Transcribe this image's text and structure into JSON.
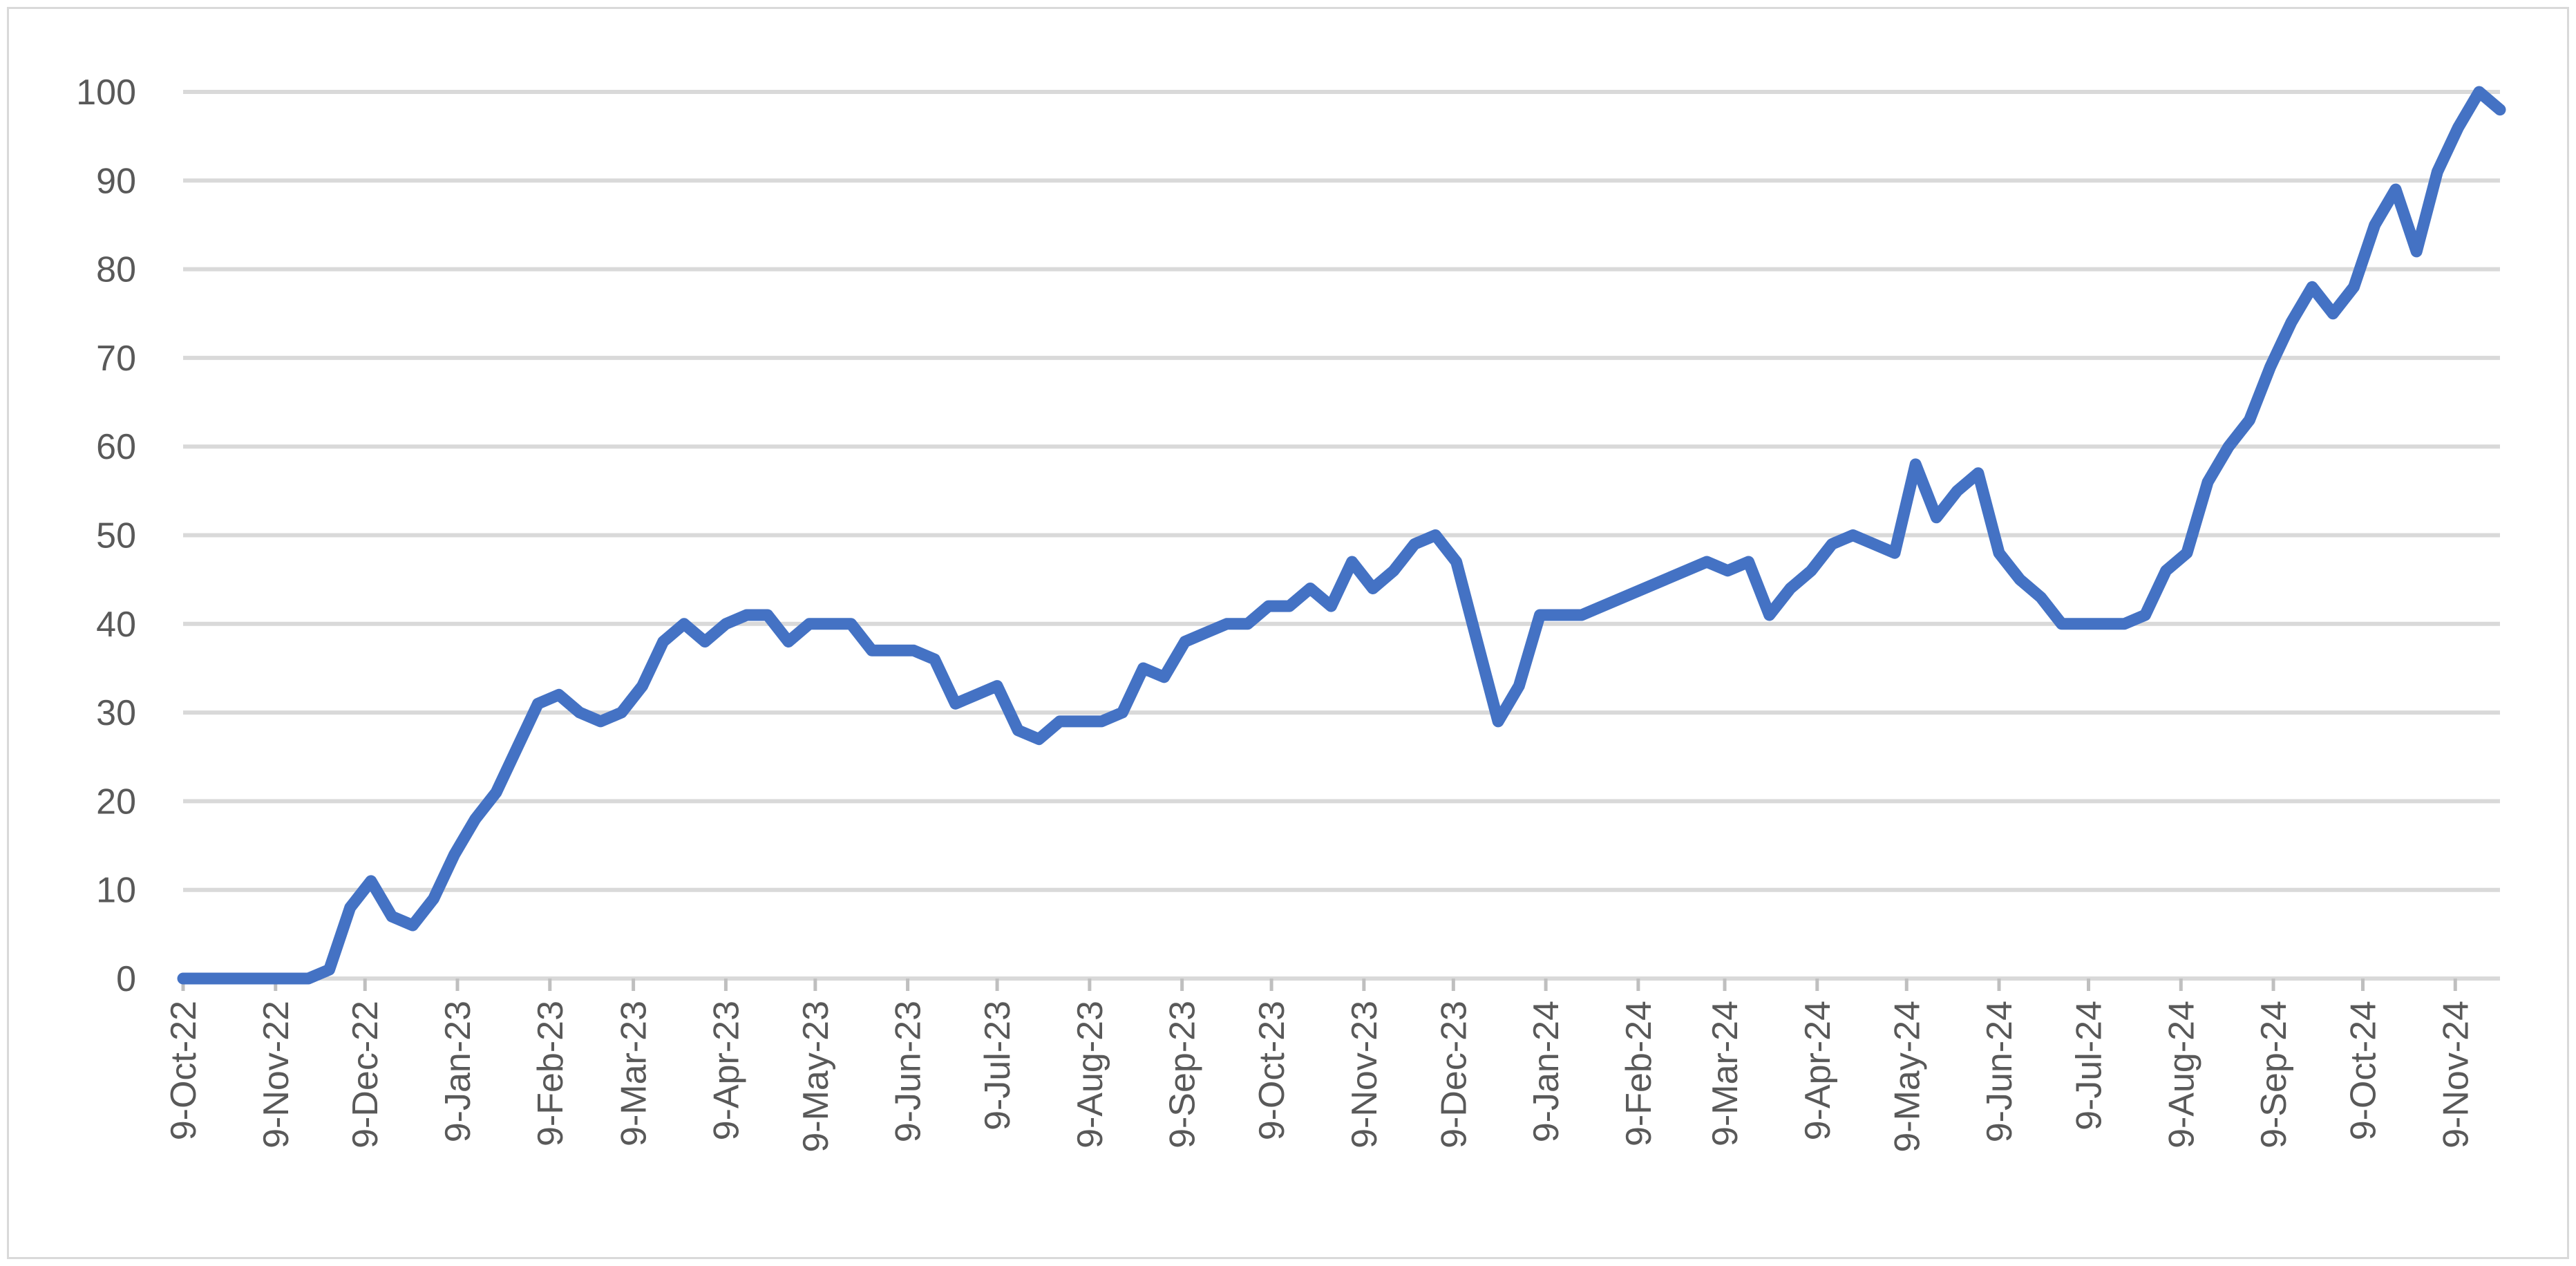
{
  "chart_data": {
    "type": "line",
    "title": "",
    "xlabel": "",
    "ylabel": "",
    "ylim": [
      0,
      100
    ],
    "yticks": [
      0,
      10,
      20,
      30,
      40,
      50,
      60,
      70,
      80,
      90,
      100
    ],
    "x_tick_labels": [
      "9-Oct-22",
      "9-Nov-22",
      "9-Dec-22",
      "9-Jan-23",
      "9-Feb-23",
      "9-Mar-23",
      "9-Apr-23",
      "9-May-23",
      "9-Jun-23",
      "9-Jul-23",
      "9-Aug-23",
      "9-Sep-23",
      "9-Oct-23",
      "9-Nov-23",
      "9-Dec-23",
      "9-Jan-24",
      "9-Feb-24",
      "9-Mar-24",
      "9-Apr-24",
      "9-May-24",
      "9-Jun-24",
      "9-Jul-24",
      "9-Aug-24",
      "9-Sep-24",
      "9-Oct-24",
      "9-Nov-24"
    ],
    "grid": true,
    "legend": "none",
    "series": [
      {
        "color": "#4472c4",
        "points": [
          [
            "2022-10-09",
            0
          ],
          [
            "2022-10-16",
            0
          ],
          [
            "2022-10-23",
            0
          ],
          [
            "2022-10-30",
            0
          ],
          [
            "2022-11-06",
            0
          ],
          [
            "2022-11-13",
            0
          ],
          [
            "2022-11-20",
            0
          ],
          [
            "2022-11-27",
            1
          ],
          [
            "2022-12-04",
            8
          ],
          [
            "2022-12-11",
            11
          ],
          [
            "2022-12-18",
            7
          ],
          [
            "2022-12-25",
            6
          ],
          [
            "2023-01-01",
            9
          ],
          [
            "2023-01-08",
            14
          ],
          [
            "2023-01-15",
            18
          ],
          [
            "2023-01-22",
            21
          ],
          [
            "2023-01-29",
            26
          ],
          [
            "2023-02-05",
            31
          ],
          [
            "2023-02-12",
            32
          ],
          [
            "2023-02-19",
            30
          ],
          [
            "2023-02-26",
            29
          ],
          [
            "2023-03-05",
            30
          ],
          [
            "2023-03-12",
            33
          ],
          [
            "2023-03-19",
            38
          ],
          [
            "2023-03-26",
            40
          ],
          [
            "2023-04-02",
            38
          ],
          [
            "2023-04-09",
            40
          ],
          [
            "2023-04-16",
            41
          ],
          [
            "2023-04-23",
            41
          ],
          [
            "2023-04-30",
            38
          ],
          [
            "2023-05-07",
            40
          ],
          [
            "2023-05-14",
            40
          ],
          [
            "2023-05-21",
            40
          ],
          [
            "2023-05-28",
            37
          ],
          [
            "2023-06-04",
            37
          ],
          [
            "2023-06-11",
            37
          ],
          [
            "2023-06-18",
            36
          ],
          [
            "2023-06-25",
            31
          ],
          [
            "2023-07-02",
            32
          ],
          [
            "2023-07-09",
            33
          ],
          [
            "2023-07-16",
            28
          ],
          [
            "2023-07-23",
            27
          ],
          [
            "2023-07-30",
            29
          ],
          [
            "2023-08-06",
            29
          ],
          [
            "2023-08-13",
            29
          ],
          [
            "2023-08-20",
            30
          ],
          [
            "2023-08-27",
            35
          ],
          [
            "2023-09-03",
            34
          ],
          [
            "2023-09-10",
            38
          ],
          [
            "2023-09-17",
            39
          ],
          [
            "2023-09-24",
            40
          ],
          [
            "2023-10-01",
            40
          ],
          [
            "2023-10-08",
            42
          ],
          [
            "2023-10-15",
            42
          ],
          [
            "2023-10-22",
            44
          ],
          [
            "2023-10-29",
            42
          ],
          [
            "2023-11-05",
            47
          ],
          [
            "2023-11-12",
            44
          ],
          [
            "2023-11-19",
            46
          ],
          [
            "2023-11-26",
            49
          ],
          [
            "2023-12-03",
            50
          ],
          [
            "2023-12-10",
            47
          ],
          [
            "2023-12-17",
            38
          ],
          [
            "2023-12-24",
            29
          ],
          [
            "2023-12-31",
            33
          ],
          [
            "2024-01-07",
            41
          ],
          [
            "2024-01-14",
            41
          ],
          [
            "2024-01-21",
            41
          ],
          [
            "2024-03-03",
            47
          ],
          [
            "2024-03-10",
            46
          ],
          [
            "2024-03-17",
            47
          ],
          [
            "2024-03-24",
            41
          ],
          [
            "2024-03-31",
            44
          ],
          [
            "2024-04-07",
            46
          ],
          [
            "2024-04-14",
            49
          ],
          [
            "2024-04-21",
            50
          ],
          [
            "2024-04-28",
            49
          ],
          [
            "2024-05-05",
            48
          ],
          [
            "2024-05-12",
            58
          ],
          [
            "2024-05-19",
            52
          ],
          [
            "2024-05-26",
            55
          ],
          [
            "2024-06-02",
            57
          ],
          [
            "2024-06-09",
            48
          ],
          [
            "2024-06-16",
            45
          ],
          [
            "2024-06-23",
            43
          ],
          [
            "2024-06-30",
            40
          ],
          [
            "2024-07-07",
            40
          ],
          [
            "2024-07-14",
            40
          ],
          [
            "2024-07-21",
            40
          ],
          [
            "2024-07-28",
            41
          ],
          [
            "2024-08-04",
            46
          ],
          [
            "2024-08-11",
            48
          ],
          [
            "2024-08-18",
            56
          ],
          [
            "2024-08-25",
            60
          ],
          [
            "2024-09-01",
            63
          ],
          [
            "2024-09-08",
            69
          ],
          [
            "2024-09-15",
            74
          ],
          [
            "2024-09-22",
            78
          ],
          [
            "2024-09-29",
            75
          ],
          [
            "2024-10-06",
            78
          ],
          [
            "2024-10-13",
            85
          ],
          [
            "2024-10-20",
            89
          ],
          [
            "2024-10-27",
            82
          ],
          [
            "2024-11-03",
            91
          ],
          [
            "2024-11-10",
            96
          ],
          [
            "2024-11-17",
            100
          ],
          [
            "2024-11-24",
            98
          ]
        ]
      }
    ]
  }
}
